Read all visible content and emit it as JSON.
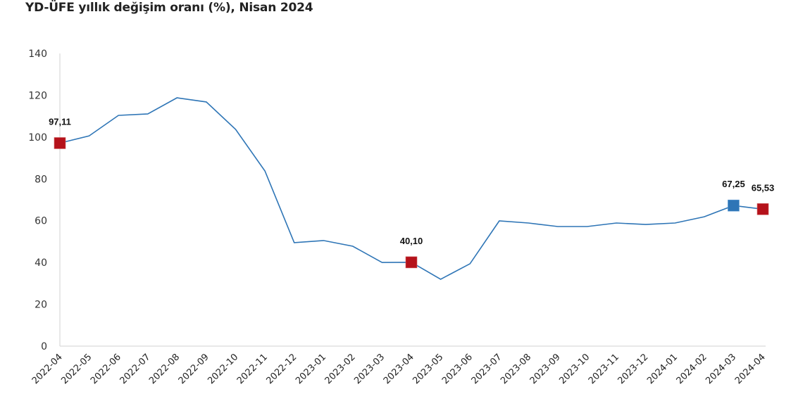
{
  "title": "YD-ÜFE yıllık değişim oranı (%), Nisan 2024",
  "colors": {
    "line": "#2e75b6",
    "marker_red": "#b5121b",
    "marker_blue": "#2e75b6",
    "axis": "#d9d9d9"
  },
  "chart_data": {
    "type": "line",
    "title": "YD-ÜFE yıllık değişim oranı (%), Nisan 2024",
    "xlabel": "",
    "ylabel": "",
    "ylim": [
      0,
      140
    ],
    "yticks": [
      0,
      20,
      40,
      60,
      80,
      100,
      120,
      140
    ],
    "grid": false,
    "legend": null,
    "categories": [
      "2022-04",
      "2022-05",
      "2022-06",
      "2022-07",
      "2022-08",
      "2022-09",
      "2022-10",
      "2022-11",
      "2022-12",
      "2023-01",
      "2023-02",
      "2023-03",
      "2023-04",
      "2023-05",
      "2023-06",
      "2023-07",
      "2023-08",
      "2023-09",
      "2023-10",
      "2023-11",
      "2023-12",
      "2024-01",
      "2024-02",
      "2024-03",
      "2024-04"
    ],
    "series": [
      {
        "name": "YD-ÜFE yıllık değişim oranı (%)",
        "values": [
          97.11,
          100.6,
          110.4,
          111.1,
          118.8,
          116.8,
          103.7,
          83.8,
          49.5,
          50.5,
          47.8,
          40.0,
          40.1,
          32.0,
          39.4,
          59.9,
          58.9,
          57.2,
          57.2,
          58.9,
          58.2,
          58.9,
          61.9,
          67.25,
          65.53
        ]
      }
    ],
    "annotations": [
      {
        "category": "2022-04",
        "label": "97,11",
        "marker": "red-square"
      },
      {
        "category": "2023-04",
        "label": "40,10",
        "marker": "red-square"
      },
      {
        "category": "2024-03",
        "label": "67,25",
        "marker": "blue-square"
      },
      {
        "category": "2024-04",
        "label": "65,53",
        "marker": "red-square"
      }
    ]
  }
}
